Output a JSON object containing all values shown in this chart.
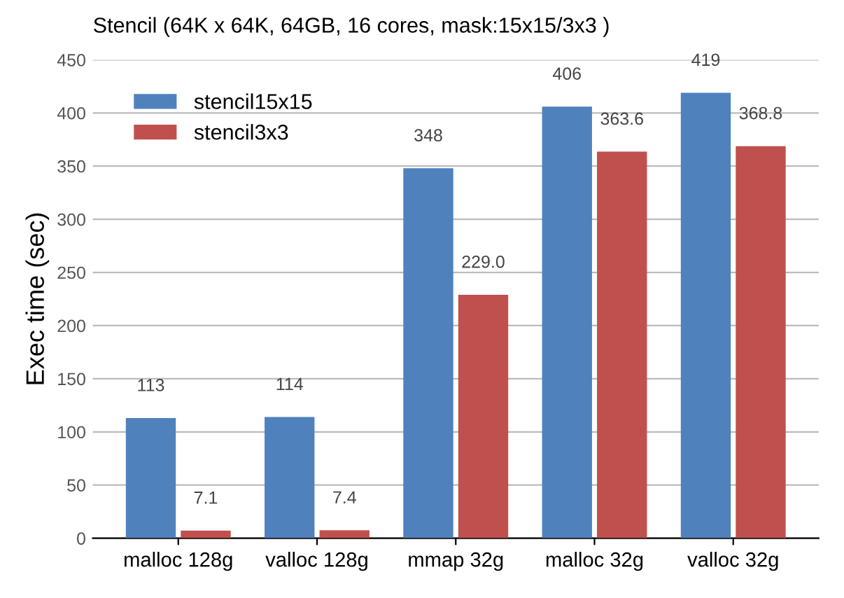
{
  "chart_data": {
    "type": "bar",
    "title": "Stencil (64K x 64K, 64GB, 16 cores, mask:15x15/3x3 )",
    "ylabel": "Exec time (sec)",
    "categories": [
      "malloc 128g",
      "valloc 128g",
      "mmap 32g",
      "malloc 32g",
      "valloc 32g"
    ],
    "series": [
      {
        "name": "stencil15x15",
        "color": "#4f81bd",
        "values": [
          113,
          114,
          348,
          406,
          419
        ],
        "value_labels": [
          "113",
          "114",
          "348",
          "406",
          "419"
        ]
      },
      {
        "name": "stencil3x3",
        "color": "#c0504d",
        "values": [
          7.1,
          7.4,
          229.0,
          363.6,
          368.8
        ],
        "value_labels": [
          "7.1",
          "7.4",
          "229.0",
          "363.6",
          "368.8"
        ]
      }
    ],
    "ylim": [
      0,
      450
    ],
    "yticks": [
      0,
      50,
      100,
      150,
      200,
      250,
      300,
      350,
      400,
      450
    ],
    "grid": "y",
    "legend": "top left"
  }
}
